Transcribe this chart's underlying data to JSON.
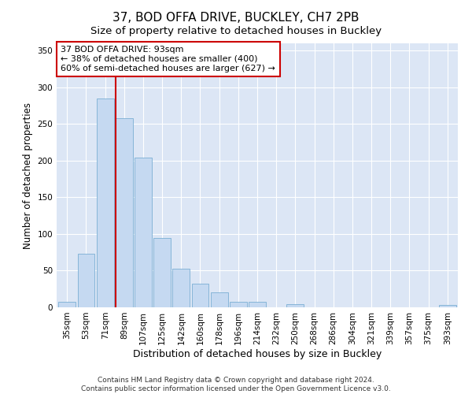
{
  "title": "37, BOD OFFA DRIVE, BUCKLEY, CH7 2PB",
  "subtitle": "Size of property relative to detached houses in Buckley",
  "xlabel": "Distribution of detached houses by size in Buckley",
  "ylabel": "Number of detached properties",
  "categories": [
    "35sqm",
    "53sqm",
    "71sqm",
    "89sqm",
    "107sqm",
    "125sqm",
    "142sqm",
    "160sqm",
    "178sqm",
    "196sqm",
    "214sqm",
    "232sqm",
    "250sqm",
    "268sqm",
    "286sqm",
    "304sqm",
    "321sqm",
    "339sqm",
    "357sqm",
    "375sqm",
    "393sqm"
  ],
  "values": [
    8,
    73,
    285,
    258,
    204,
    95,
    53,
    32,
    20,
    7,
    8,
    0,
    4,
    0,
    0,
    0,
    0,
    0,
    0,
    0,
    3
  ],
  "bar_color": "#c5d9f1",
  "bar_edge_color": "#7bafd4",
  "vline_color": "#cc0000",
  "annotation_text": "37 BOD OFFA DRIVE: 93sqm\n← 38% of detached houses are smaller (400)\n60% of semi-detached houses are larger (627) →",
  "annotation_box_color": "#ffffff",
  "annotation_box_edge": "#cc0000",
  "ylim": [
    0,
    360
  ],
  "yticks": [
    0,
    50,
    100,
    150,
    200,
    250,
    300,
    350
  ],
  "background_color": "#dce6f5",
  "footer_text": "Contains HM Land Registry data © Crown copyright and database right 2024.\nContains public sector information licensed under the Open Government Licence v3.0.",
  "title_fontsize": 11,
  "subtitle_fontsize": 9.5,
  "xlabel_fontsize": 9,
  "ylabel_fontsize": 8.5,
  "tick_fontsize": 7.5,
  "annotation_fontsize": 8,
  "footer_fontsize": 6.5
}
